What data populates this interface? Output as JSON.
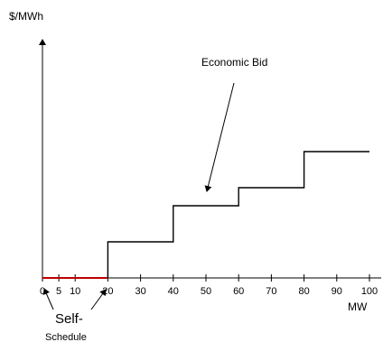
{
  "chart_data": {
    "type": "line",
    "step": true,
    "ylabel": "$/MWh",
    "xlabel": "MW",
    "xlim": [
      0,
      100
    ],
    "x_ticks": [
      0,
      5,
      10,
      20,
      30,
      40,
      50,
      60,
      70,
      80,
      90,
      100
    ],
    "self_schedule": {
      "x": [
        0,
        20
      ],
      "y": [
        0,
        0
      ],
      "color": "#c00000"
    },
    "economic_bid": {
      "x": [
        20,
        20,
        40,
        40,
        60,
        60,
        80,
        80,
        100
      ],
      "y": [
        0,
        1,
        1,
        2,
        2,
        2.5,
        2.5,
        3.5,
        3.5
      ],
      "color": "#000000"
    },
    "annotations": {
      "economic_bid": "Economic Bid",
      "self_line1": "Self-",
      "self_line2": "Schedule"
    }
  }
}
